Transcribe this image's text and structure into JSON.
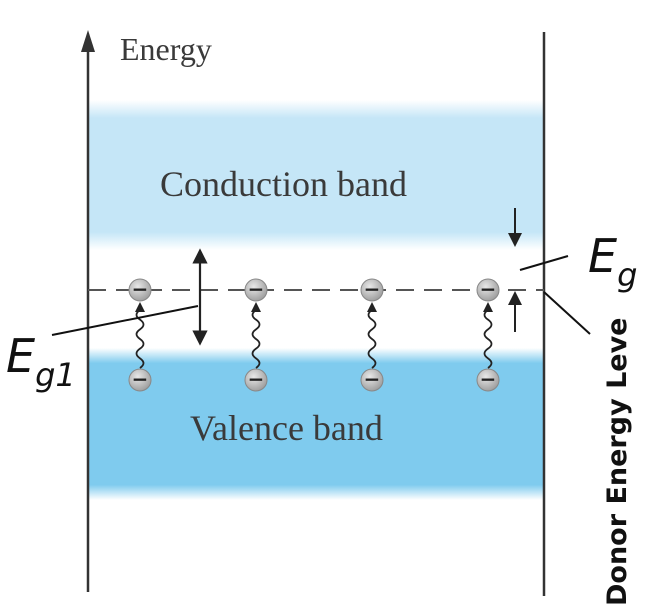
{
  "axis": {
    "label": "Energy"
  },
  "bands": {
    "conduction": {
      "label": "Conduction band",
      "color": "#c5e6f7"
    },
    "valence": {
      "label": "Valence band",
      "color": "#7fcbee"
    }
  },
  "gap_labels": {
    "eg": {
      "main": "E",
      "sub": "g"
    },
    "eg1": {
      "main": "E",
      "sub": "g1"
    }
  },
  "donor_level": {
    "label": "Donor Energy Leve"
  },
  "donor_electron_count": 4,
  "electron_sign": "−"
}
